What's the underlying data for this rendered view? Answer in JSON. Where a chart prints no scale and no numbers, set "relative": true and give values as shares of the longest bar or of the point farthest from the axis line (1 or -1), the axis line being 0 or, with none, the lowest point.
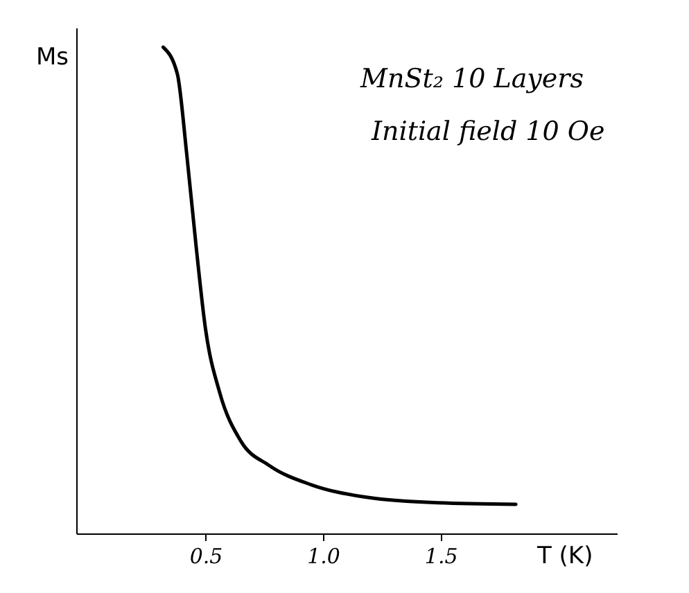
{
  "chart_data": {
    "type": "line",
    "relative": true,
    "ylabel": "Ms",
    "xlabel": "T (K)",
    "annotations": [
      "MnSt₂ 10 Layers",
      "Initial field 10 Oe"
    ],
    "x": [
      0.32,
      0.38,
      0.42,
      0.46,
      0.5,
      0.56,
      0.65,
      0.77,
      0.95,
      1.19,
      1.49,
      1.82
    ],
    "series": [
      {
        "color": "#000000",
        "values": [
          1.0,
          0.945,
          0.78,
          0.59,
          0.42,
          0.29,
          0.19,
          0.14,
          0.1,
          0.074,
          0.063,
          0.06
        ]
      }
    ],
    "xlim": [
      -0.05,
      2.25
    ],
    "xticks": [
      0.5,
      {
        "value": 1,
        "label": "1.0"
      },
      1.5
    ],
    "grid": false,
    "marker": "none",
    "line_style": "solid"
  }
}
